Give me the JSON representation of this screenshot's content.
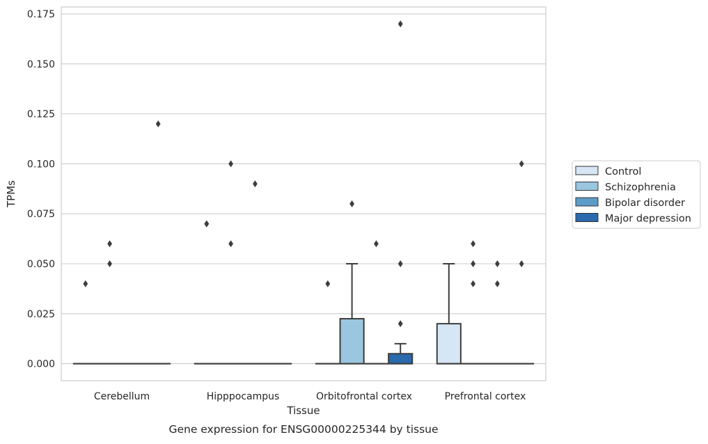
{
  "chart_data": {
    "type": "box",
    "xlabel": "Tissue",
    "ylabel": "TPMs",
    "caption": "Gene expression for ENSG00000225344 by tissue",
    "ylim": [
      -0.0085,
      0.1785
    ],
    "yticks": [
      0.0,
      0.025,
      0.05,
      0.075,
      0.1,
      0.125,
      0.15,
      0.175
    ],
    "ytick_labels": [
      "0.000",
      "0.025",
      "0.050",
      "0.075",
      "0.100",
      "0.125",
      "0.150",
      "0.175"
    ],
    "grid": "horizontal",
    "legend_position": "right",
    "categories": [
      "Cerebellum",
      "Hipppocampus",
      "Orbitofrontal cortex",
      "Prefrontal cortex"
    ],
    "series": [
      {
        "name": "Control",
        "color": "#d6e6f4",
        "boxes": [
          {
            "q1": 0,
            "median": 0,
            "q3": 0,
            "whisker_low": 0,
            "whisker_high": 0,
            "outliers": [
              0.04
            ]
          },
          {
            "q1": 0,
            "median": 0,
            "q3": 0,
            "whisker_low": 0,
            "whisker_high": 0,
            "outliers": [
              0.07,
              0.07
            ]
          },
          {
            "q1": 0,
            "median": 0,
            "q3": 0,
            "whisker_low": 0,
            "whisker_high": 0,
            "outliers": [
              0.04
            ]
          },
          {
            "q1": 0,
            "median": 0,
            "q3": 0.02,
            "whisker_low": 0,
            "whisker_high": 0.05,
            "outliers": []
          }
        ]
      },
      {
        "name": "Schizophrenia",
        "color": "#9ac6e0",
        "boxes": [
          {
            "q1": 0,
            "median": 0,
            "q3": 0,
            "whisker_low": 0,
            "whisker_high": 0,
            "outliers": [
              0.05,
              0.06
            ]
          },
          {
            "q1": 0,
            "median": 0,
            "q3": 0,
            "whisker_low": 0,
            "whisker_high": 0,
            "outliers": [
              0.06,
              0.1
            ]
          },
          {
            "q1": 0,
            "median": 0,
            "q3": 0.0225,
            "whisker_low": 0,
            "whisker_high": 0.05,
            "outliers": [
              0.08
            ]
          },
          {
            "q1": 0,
            "median": 0,
            "q3": 0,
            "whisker_low": 0,
            "whisker_high": 0,
            "outliers": [
              0.04,
              0.05,
              0.06
            ]
          }
        ]
      },
      {
        "name": "Bipolar disorder",
        "color": "#5b9cc9",
        "boxes": [
          {
            "q1": 0,
            "median": 0,
            "q3": 0,
            "whisker_low": 0,
            "whisker_high": 0,
            "outliers": []
          },
          {
            "q1": 0,
            "median": 0,
            "q3": 0,
            "whisker_low": 0,
            "whisker_high": 0,
            "outliers": [
              0.09
            ]
          },
          {
            "q1": 0,
            "median": 0,
            "q3": 0,
            "whisker_low": 0,
            "whisker_high": 0,
            "outliers": [
              0.06
            ]
          },
          {
            "q1": 0,
            "median": 0,
            "q3": 0,
            "whisker_low": 0,
            "whisker_high": 0,
            "outliers": [
              0.04,
              0.05
            ]
          }
        ]
      },
      {
        "name": "Major depression",
        "color": "#2a6aad",
        "boxes": [
          {
            "q1": 0,
            "median": 0,
            "q3": 0,
            "whisker_low": 0,
            "whisker_high": 0,
            "outliers": [
              0.12
            ]
          },
          {
            "q1": 0,
            "median": 0,
            "q3": 0,
            "whisker_low": 0,
            "whisker_high": 0,
            "outliers": []
          },
          {
            "q1": 0,
            "median": 0,
            "q3": 0.005,
            "whisker_low": 0,
            "whisker_high": 0.01,
            "outliers": [
              0.02,
              0.05,
              0.17
            ]
          },
          {
            "q1": 0,
            "median": 0,
            "q3": 0,
            "whisker_low": 0,
            "whisker_high": 0,
            "outliers": [
              0.05,
              0.1
            ]
          }
        ]
      }
    ]
  }
}
